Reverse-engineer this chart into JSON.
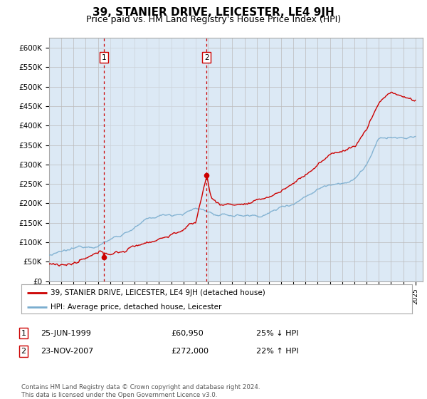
{
  "title": "39, STANIER DRIVE, LEICESTER, LE4 9JH",
  "subtitle": "Price paid vs. HM Land Registry's House Price Index (HPI)",
  "ylabel_values": [
    "£0",
    "£50K",
    "£100K",
    "£150K",
    "£200K",
    "£250K",
    "£300K",
    "£350K",
    "£400K",
    "£450K",
    "£500K",
    "£550K",
    "£600K"
  ],
  "ytick_values": [
    0,
    50000,
    100000,
    150000,
    200000,
    250000,
    300000,
    350000,
    400000,
    450000,
    500000,
    550000,
    600000
  ],
  "ylim": [
    0,
    625000
  ],
  "legend_line1": "39, STANIER DRIVE, LEICESTER, LE4 9JH (detached house)",
  "legend_line2": "HPI: Average price, detached house, Leicester",
  "annotation1_date": "25-JUN-1999",
  "annotation1_price": "£60,950",
  "annotation1_hpi": "25% ↓ HPI",
  "annotation2_date": "23-NOV-2007",
  "annotation2_price": "£272,000",
  "annotation2_hpi": "22% ↑ HPI",
  "footer": "Contains HM Land Registry data © Crown copyright and database right 2024.\nThis data is licensed under the Open Government Licence v3.0.",
  "sale1_year": 1999.48,
  "sale1_y": 60950,
  "sale2_year": 2007.9,
  "sale2_y": 272000,
  "line_color_red": "#cc0000",
  "line_color_blue": "#7aadcf",
  "shade_color": "#dce9f5",
  "background_color": "#dce9f5",
  "plot_bg": "#ffffff",
  "grid_color": "#bbbbbb",
  "ann_box_color": "#cc0000",
  "title_fontsize": 11,
  "subtitle_fontsize": 9,
  "xlim_left": 1995.0,
  "xlim_right": 2025.6
}
